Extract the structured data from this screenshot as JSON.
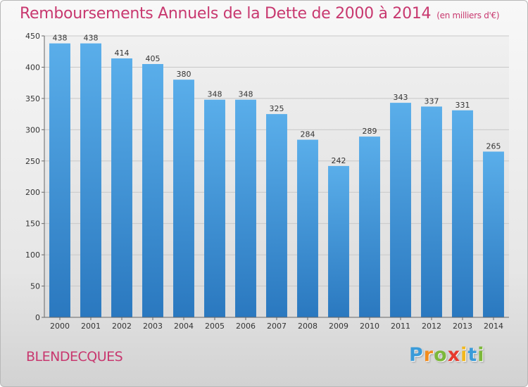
{
  "title": "Remboursements Annuels de la Dette de 2000 à 2014",
  "unit": "(en milliers d'€)",
  "town": "BLENDECQUES",
  "logo": {
    "text": "Proxiti",
    "colors": [
      "#3a9bd9",
      "#f28c1e",
      "#7cb83a",
      "#e63a2e",
      "#f2b81e",
      "#3a9bd9",
      "#7cb83a"
    ]
  },
  "colors": {
    "title": "#c8386f",
    "bar_top": "#5aaeea",
    "bar_bottom": "#2a78bf"
  },
  "chart_data": {
    "type": "bar",
    "categories": [
      "2000",
      "2001",
      "2002",
      "2003",
      "2004",
      "2005",
      "2006",
      "2007",
      "2008",
      "2009",
      "2010",
      "2011",
      "2012",
      "2013",
      "2014"
    ],
    "values": [
      438,
      438,
      414,
      405,
      380,
      348,
      348,
      325,
      284,
      242,
      289,
      343,
      337,
      331,
      265
    ],
    "ylim": [
      0,
      450
    ],
    "yticks": [
      0,
      50,
      100,
      150,
      200,
      250,
      300,
      350,
      400,
      450
    ],
    "grid": true,
    "legend": "none"
  }
}
